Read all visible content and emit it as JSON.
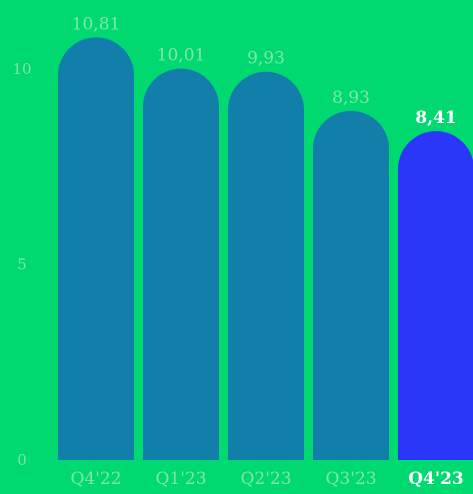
{
  "chart_data": {
    "type": "bar",
    "categories": [
      "Q4'22",
      "Q1'23",
      "Q2'23",
      "Q3'23",
      "Q4'23"
    ],
    "values": [
      10.81,
      10.01,
      9.93,
      8.93,
      8.41
    ],
    "value_labels": [
      "10,81",
      "10,01",
      "9,93",
      "8,93",
      "8,41"
    ],
    "highlight_index": 4,
    "ylim": [
      0,
      10.9
    ],
    "yticks": [
      0,
      5,
      10
    ],
    "ytick_labels": [
      "0",
      "5",
      "10"
    ],
    "grid": false,
    "title": "",
    "xlabel": "",
    "ylabel": ""
  },
  "colors": {
    "background": "#00d96f",
    "bar": "#127eaa",
    "bar_highlight": "#2b37f8",
    "label": "#7fe6a9",
    "label_highlight": "#ffffff"
  }
}
